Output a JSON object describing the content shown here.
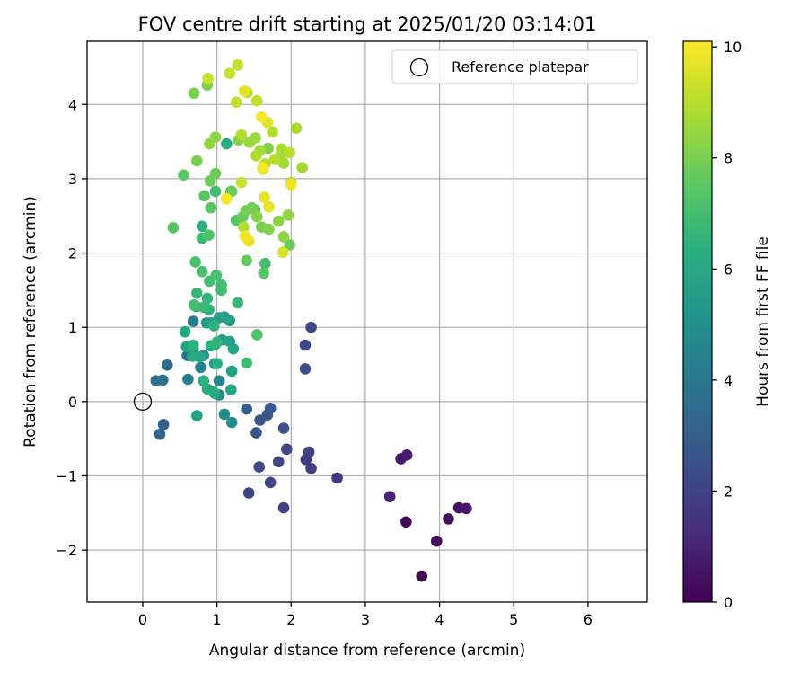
{
  "chart_data": {
    "type": "scatter",
    "title": "FOV centre drift starting at 2025/01/20 03:14:01",
    "xlabel": "Angular distance from reference (arcmin)",
    "ylabel": "Rotation from reference (arcmin)",
    "xlim": [
      -0.75,
      6.8
    ],
    "ylim": [
      -2.7,
      4.85
    ],
    "xticks": [
      0,
      1,
      2,
      3,
      4,
      5,
      6
    ],
    "yticks": [
      -2,
      -1,
      0,
      1,
      2,
      3,
      4
    ],
    "grid": true,
    "legend": {
      "placement": "top-right",
      "entries": [
        "Reference platepar"
      ]
    },
    "reference_point": {
      "label": "Reference platepar",
      "x": 0,
      "y": 0,
      "marker": "open-circle"
    },
    "colorbar": {
      "label": "Hours from first FF file",
      "colormap": "viridis",
      "range": [
        0,
        10.1
      ],
      "ticks": [
        0,
        2,
        4,
        6,
        8,
        10
      ]
    },
    "points": [
      [
        3.76,
        -2.35,
        0.1
      ],
      [
        3.55,
        -1.62,
        0.2
      ],
      [
        3.96,
        -1.88,
        0.3
      ],
      [
        4.12,
        -1.58,
        0.4
      ],
      [
        4.26,
        -1.43,
        0.5
      ],
      [
        4.36,
        -1.44,
        0.6
      ],
      [
        3.48,
        -0.77,
        0.7
      ],
      [
        3.56,
        -0.72,
        0.8
      ],
      [
        3.33,
        -1.28,
        1.1
      ],
      [
        2.62,
        -1.03,
        1.6
      ],
      [
        2.27,
        -0.9,
        1.7
      ],
      [
        2.2,
        -0.78,
        1.8
      ],
      [
        2.24,
        -0.68,
        1.9
      ],
      [
        1.9,
        -1.43,
        1.9
      ],
      [
        1.72,
        -1.09,
        2.0
      ],
      [
        1.43,
        -1.23,
        2.0
      ],
      [
        1.83,
        -0.81,
        2.1
      ],
      [
        1.57,
        -0.88,
        2.1
      ],
      [
        1.94,
        -0.64,
        2.2
      ],
      [
        2.27,
        1.0,
        2.2
      ],
      [
        2.19,
        0.76,
        2.3
      ],
      [
        2.19,
        0.44,
        2.4
      ],
      [
        1.9,
        -0.36,
        2.5
      ],
      [
        1.53,
        -0.42,
        2.5
      ],
      [
        1.58,
        -0.25,
        2.6
      ],
      [
        1.68,
        -0.18,
        2.7
      ],
      [
        1.72,
        -0.09,
        2.8
      ],
      [
        1.4,
        -0.1,
        3.0
      ],
      [
        0.28,
        -0.31,
        3.2
      ],
      [
        0.23,
        -0.44,
        3.3
      ],
      [
        0.33,
        0.49,
        3.5
      ],
      [
        0.18,
        0.28,
        3.6
      ],
      [
        0.27,
        0.29,
        3.7
      ],
      [
        0.6,
        0.62,
        3.8
      ],
      [
        0.68,
        1.08,
        4.2
      ],
      [
        0.61,
        0.3,
        4.3
      ],
      [
        0.78,
        0.46,
        4.5
      ],
      [
        1.03,
        0.28,
        4.6
      ],
      [
        1.03,
        0.09,
        4.7
      ],
      [
        1.1,
        -0.17,
        4.9
      ],
      [
        1.2,
        -0.28,
        4.9
      ],
      [
        0.68,
        0.72,
        5.0
      ],
      [
        0.82,
        0.62,
        5.2
      ],
      [
        0.97,
        0.51,
        5.2
      ],
      [
        0.86,
        1.06,
        5.3
      ],
      [
        0.98,
        0.77,
        5.5
      ],
      [
        1.07,
        0.83,
        5.5
      ],
      [
        0.92,
        1.06,
        5.6
      ],
      [
        1.1,
        1.14,
        5.6
      ],
      [
        1.2,
        0.41,
        5.7
      ],
      [
        1.17,
        1.09,
        5.7
      ],
      [
        1.03,
        1.13,
        5.7
      ],
      [
        1.17,
        0.81,
        5.8
      ],
      [
        0.73,
        -0.19,
        5.8
      ],
      [
        1.22,
        0.71,
        5.9
      ],
      [
        0.59,
        0.74,
        5.9
      ],
      [
        1.19,
        0.16,
        5.9
      ],
      [
        0.57,
        0.94,
        6.0
      ],
      [
        0.97,
        0.11,
        6.0
      ],
      [
        0.77,
        0.6,
        6.0
      ],
      [
        0.67,
        0.61,
        6.1
      ],
      [
        0.87,
        0.17,
        6.1
      ],
      [
        0.95,
        0.13,
        6.2
      ],
      [
        1.13,
        3.47,
        6.2
      ],
      [
        0.72,
        1.28,
        6.3
      ],
      [
        1.0,
        0.51,
        6.3
      ],
      [
        0.82,
        0.28,
        6.4
      ],
      [
        0.92,
        0.75,
        6.4
      ],
      [
        0.68,
        0.76,
        6.4
      ],
      [
        0.8,
        2.36,
        6.4
      ],
      [
        0.89,
        1.24,
        6.4
      ],
      [
        0.96,
        1.02,
        6.5
      ],
      [
        1.0,
        0.8,
        6.6
      ],
      [
        0.87,
        1.39,
        6.6
      ],
      [
        1.19,
        2.83,
        6.6
      ],
      [
        1.28,
        1.33,
        6.7
      ],
      [
        0.73,
        1.46,
        6.7
      ],
      [
        0.82,
        1.27,
        6.8
      ],
      [
        0.8,
        2.2,
        6.8
      ],
      [
        1.06,
        1.5,
        6.9
      ],
      [
        1.4,
        0.52,
        6.9
      ],
      [
        0.69,
        1.3,
        7.0
      ],
      [
        1.06,
        1.57,
        7.0
      ],
      [
        0.98,
        2.83,
        7.0
      ],
      [
        0.9,
        1.62,
        7.0
      ],
      [
        1.65,
        1.86,
        7.0
      ],
      [
        0.8,
        1.75,
        7.1
      ],
      [
        0.99,
        1.7,
        7.1
      ],
      [
        0.71,
        1.88,
        7.1
      ],
      [
        0.89,
        2.24,
        7.2
      ],
      [
        1.54,
        0.9,
        7.2
      ],
      [
        1.63,
        1.73,
        7.4
      ],
      [
        1.26,
        2.44,
        7.4
      ],
      [
        0.41,
        2.34,
        7.4
      ],
      [
        0.92,
        2.61,
        7.4
      ],
      [
        0.55,
        3.05,
        7.5
      ],
      [
        0.83,
        2.77,
        7.5
      ],
      [
        1.4,
        1.9,
        7.6
      ],
      [
        1.51,
        2.58,
        7.7
      ],
      [
        1.35,
        2.49,
        7.7
      ],
      [
        1.98,
        2.11,
        7.8
      ],
      [
        1.2,
        2.83,
        7.8
      ],
      [
        0.91,
        2.97,
        7.8
      ],
      [
        0.98,
        3.07,
        7.8
      ],
      [
        1.39,
        2.57,
        7.9
      ],
      [
        1.47,
        2.61,
        7.9
      ],
      [
        1.6,
        2.35,
        8.0
      ],
      [
        0.73,
        3.24,
        8.0
      ],
      [
        0.69,
        4.15,
        8.0
      ],
      [
        0.87,
        4.26,
        8.1
      ],
      [
        1.69,
        3.41,
        8.1
      ],
      [
        1.54,
        2.49,
        8.2
      ],
      [
        1.29,
        3.52,
        8.2
      ],
      [
        1.7,
        2.32,
        8.2
      ],
      [
        1.83,
        2.43,
        8.3
      ],
      [
        0.98,
        3.56,
        8.3
      ],
      [
        1.9,
        2.22,
        8.3
      ],
      [
        0.9,
        3.47,
        8.4
      ],
      [
        1.96,
        2.51,
        8.4
      ],
      [
        1.44,
        3.49,
        8.5
      ],
      [
        1.52,
        3.55,
        8.5
      ],
      [
        1.58,
        3.38,
        8.6
      ],
      [
        1.86,
        3.32,
        8.6
      ],
      [
        1.9,
        3.21,
        8.7
      ],
      [
        2.15,
        3.15,
        8.7
      ],
      [
        2.07,
        3.68,
        8.8
      ],
      [
        1.87,
        3.4,
        8.8
      ],
      [
        1.33,
        3.59,
        8.9
      ],
      [
        1.36,
        2.35,
        8.9
      ],
      [
        1.53,
        3.31,
        8.9
      ],
      [
        1.75,
        3.63,
        8.9
      ],
      [
        1.65,
        3.2,
        9.0
      ],
      [
        1.78,
        3.26,
        9.0
      ],
      [
        1.98,
        3.35,
        9.0
      ],
      [
        2.0,
        2.95,
        9.1
      ],
      [
        1.41,
        4.16,
        9.1
      ],
      [
        1.54,
        4.05,
        9.2
      ],
      [
        1.26,
        4.03,
        9.2
      ],
      [
        1.28,
        4.53,
        9.2
      ],
      [
        0.88,
        4.35,
        9.3
      ],
      [
        1.17,
        4.42,
        9.3
      ],
      [
        1.62,
        3.13,
        9.3
      ],
      [
        1.33,
        2.95,
        9.3
      ],
      [
        1.89,
        2.01,
        9.5
      ],
      [
        1.68,
        3.76,
        9.6
      ],
      [
        1.37,
        4.18,
        9.7
      ],
      [
        1.64,
        2.75,
        9.7
      ],
      [
        1.7,
        2.62,
        9.8
      ],
      [
        1.43,
        2.16,
        9.8
      ],
      [
        1.38,
        2.23,
        9.9
      ],
      [
        2.0,
        2.92,
        9.9
      ],
      [
        1.6,
        3.83,
        10.0
      ],
      [
        1.13,
        2.73,
        10.0
      ],
      [
        1.62,
        3.15,
        10.0
      ]
    ]
  }
}
